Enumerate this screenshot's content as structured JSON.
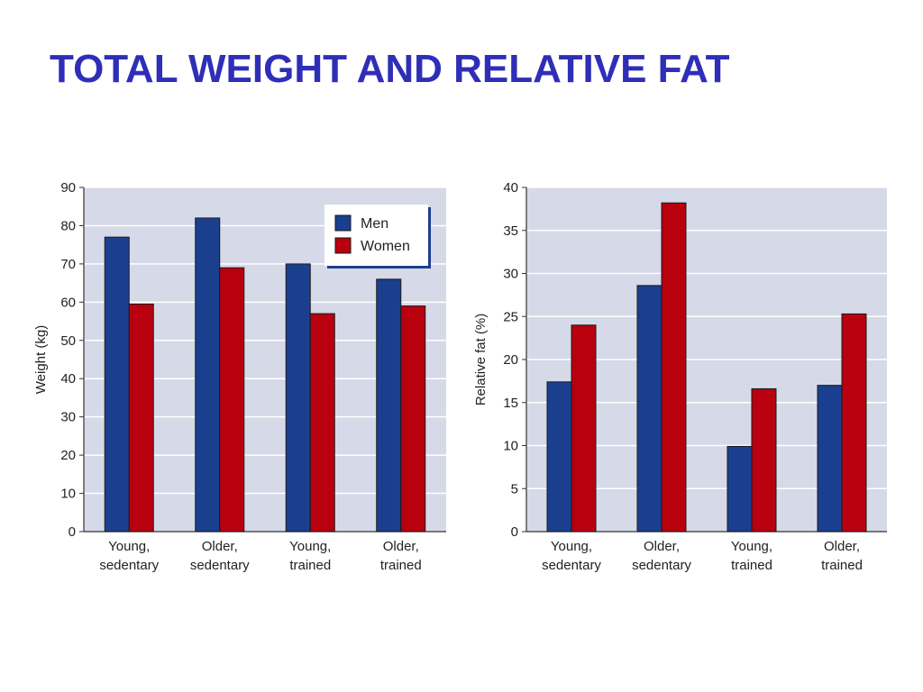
{
  "slide": {
    "title": "TOTAL WEIGHT AND RELATIVE FAT"
  },
  "colors": {
    "title": "#2e2eb8",
    "men": "#1a3f8f",
    "women": "#b8000f",
    "plot_bg": "#d6d9e8",
    "grid": "#ffffff"
  },
  "chart_data": [
    {
      "type": "bar",
      "categories": [
        [
          "Young,",
          "sedentary"
        ],
        [
          "Older,",
          "sedentary"
        ],
        [
          "Young,",
          "trained"
        ],
        [
          "Older,",
          "trained"
        ]
      ],
      "series": [
        {
          "name": "Men",
          "values": [
            77,
            82,
            70,
            66
          ]
        },
        {
          "name": "Women",
          "values": [
            59.5,
            69,
            57,
            59
          ]
        }
      ],
      "ylabel": "Weight (kg)",
      "ylim": [
        0,
        90
      ],
      "yticks": [
        0,
        10,
        20,
        30,
        40,
        50,
        60,
        70,
        80,
        90
      ],
      "grid": true,
      "legend": {
        "placement": "top-right",
        "entries": [
          "Men",
          "Women"
        ]
      }
    },
    {
      "type": "bar",
      "categories": [
        [
          "Young,",
          "sedentary"
        ],
        [
          "Older,",
          "sedentary"
        ],
        [
          "Young,",
          "trained"
        ],
        [
          "Older,",
          "trained"
        ]
      ],
      "series": [
        {
          "name": "Men",
          "values": [
            17.4,
            28.6,
            9.9,
            17
          ]
        },
        {
          "name": "Women",
          "values": [
            24,
            38.2,
            16.6,
            25.3
          ]
        }
      ],
      "ylabel": "Relative fat (%)",
      "ylim": [
        0,
        40
      ],
      "yticks": [
        0,
        5,
        10,
        15,
        20,
        25,
        30,
        35,
        40
      ],
      "grid": true
    }
  ]
}
